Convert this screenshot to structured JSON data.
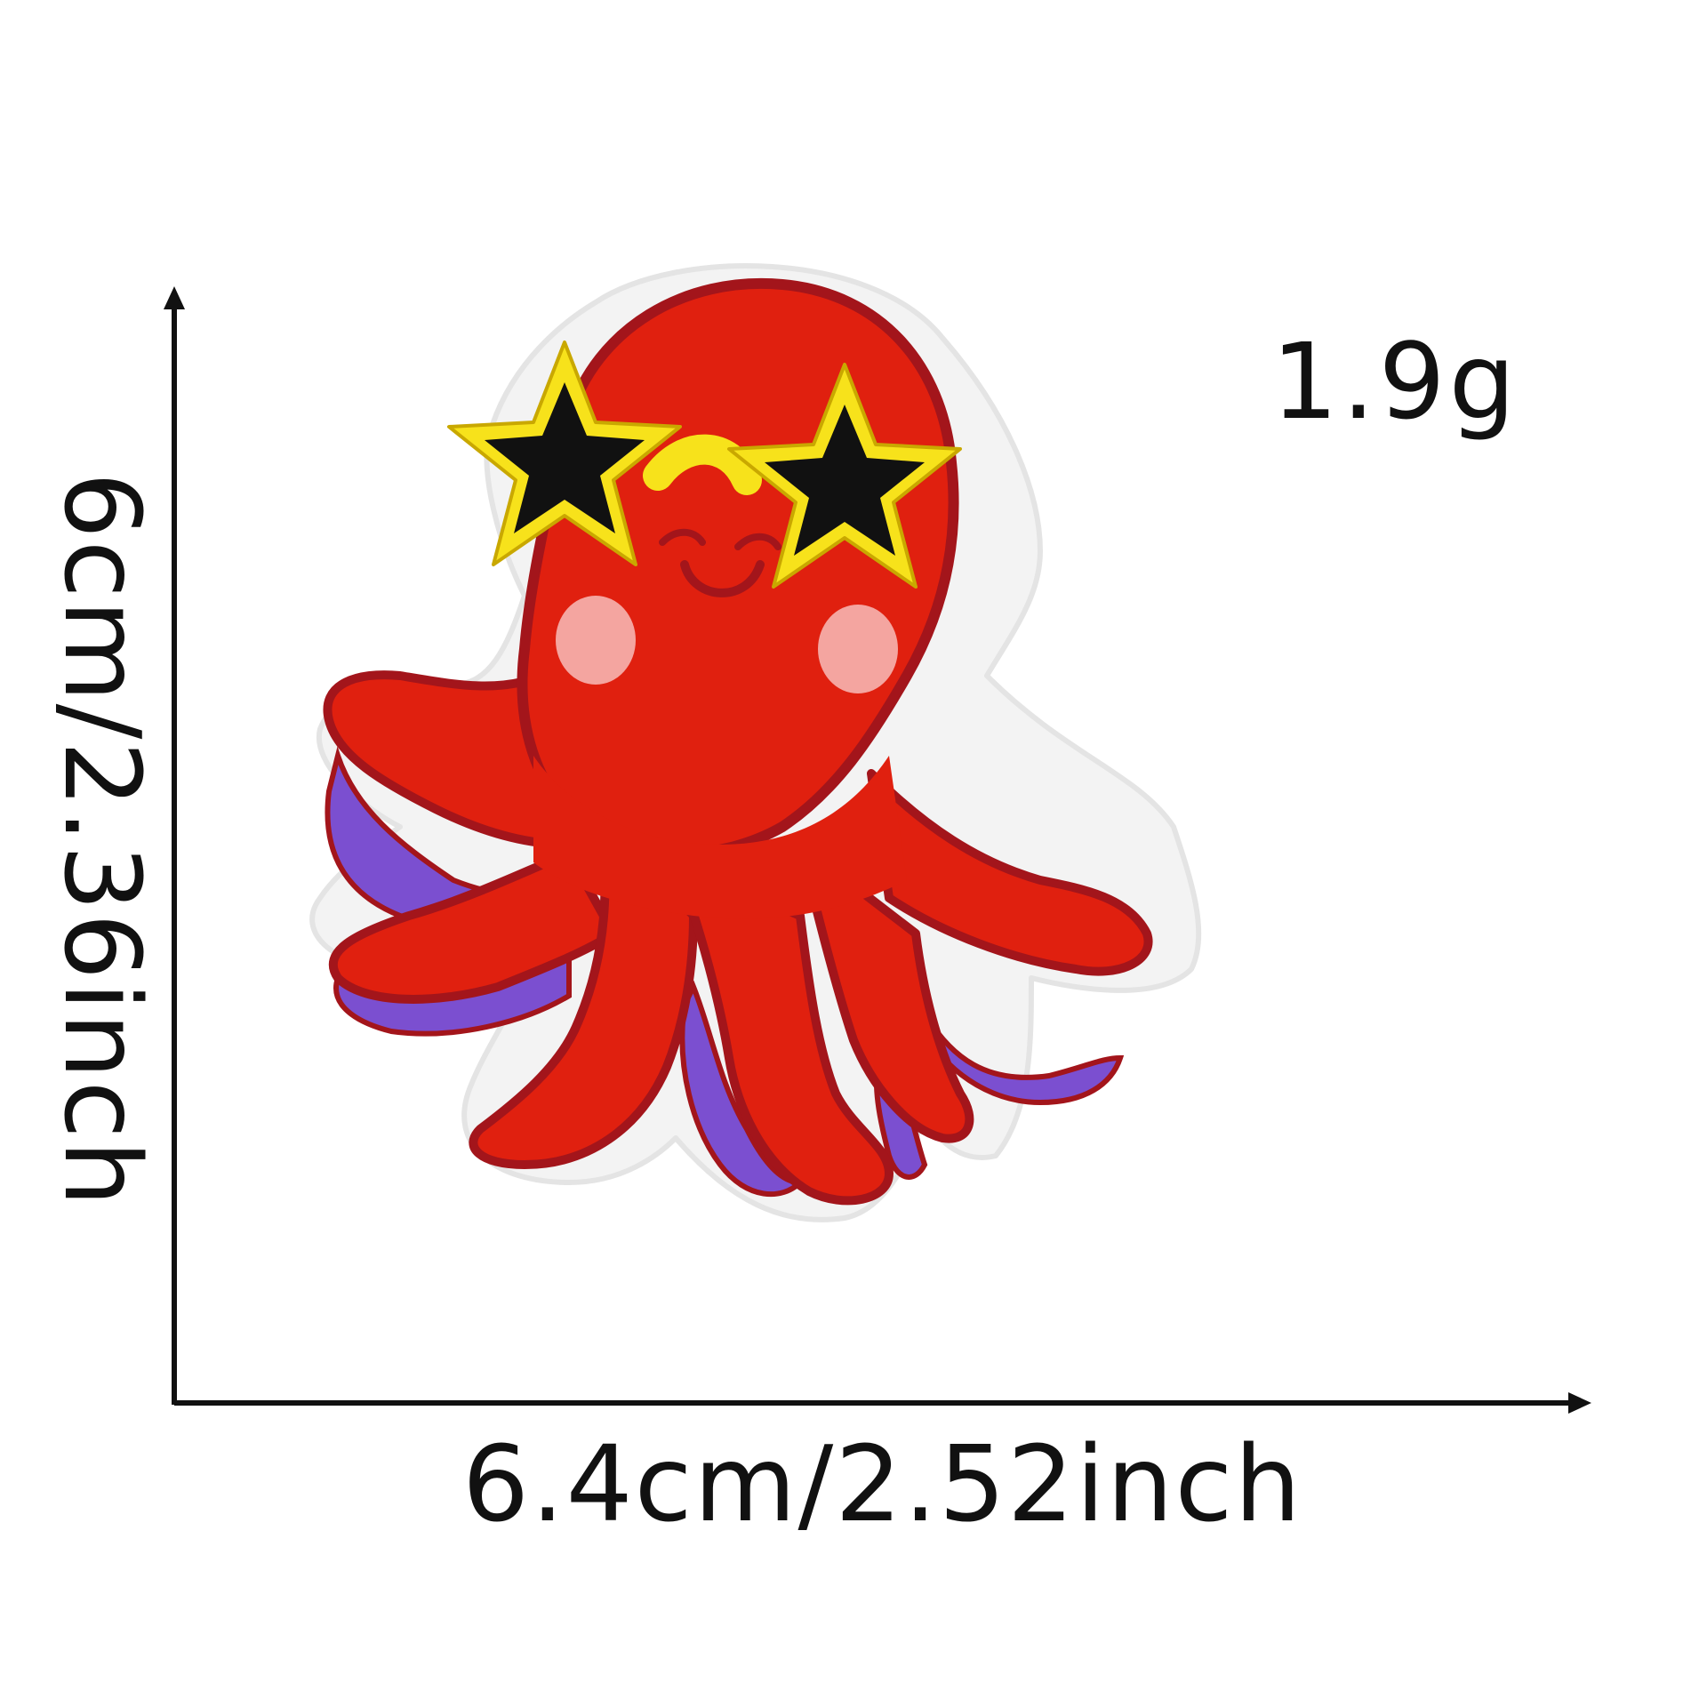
{
  "product": {
    "weight": "1.9g",
    "width": "6.4cm/2.52inch",
    "height": "6cm/2.36inch",
    "subject": "octopus-embroidered-patch"
  },
  "colors": {
    "body": "#e0200f",
    "outline": "#a3151b",
    "suckers": "#7b4fd0",
    "glasses_frame": "#f7e21b",
    "lenses": "#111111",
    "cheeks": "#f4a5a0",
    "border": "#f3f3f3",
    "text": "#111111"
  }
}
